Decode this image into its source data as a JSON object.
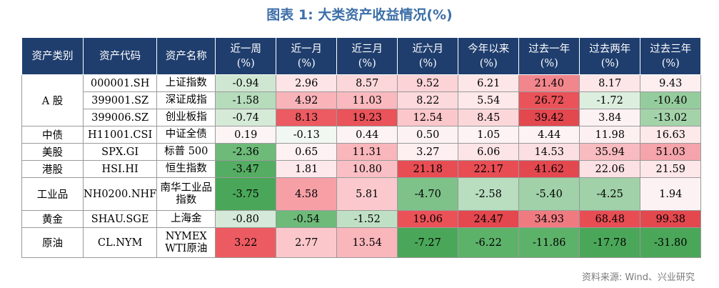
{
  "title": "图表 1:  大类资产收益情况(%)",
  "source": "资料来源: Wind、兴业研究",
  "headers": [
    {
      "line1": "资产类别",
      "line2": ""
    },
    {
      "line1": "资产代码",
      "line2": ""
    },
    {
      "line1": "资产名称",
      "line2": ""
    },
    {
      "line1": "近一周",
      "line2": "(%)"
    },
    {
      "line1": "近一月",
      "line2": "(%)"
    },
    {
      "line1": "近三月",
      "line2": "(%)"
    },
    {
      "line1": "近六月",
      "line2": "(%)"
    },
    {
      "line1": "今年以来",
      "line2": "(%)"
    },
    {
      "line1": "过去一年",
      "line2": "(%)"
    },
    {
      "line1": "过去两年",
      "line2": "(%)"
    },
    {
      "line1": "过去三年",
      "line2": "(%)"
    }
  ],
  "groups": [
    {
      "category": "A 股",
      "rows": [
        {
          "code": "000001.SH",
          "name": "上证指数",
          "values": [
            "-0.94",
            "2.96",
            "8.57",
            "9.52",
            "6.21",
            "21.40",
            "8.17",
            "9.43"
          ],
          "colors": [
            "#cfe7d2",
            "#fde4e6",
            "#fcd7da",
            "#fcd3d6",
            "#fde6e8",
            "#f2868d",
            "#fde6e8",
            "#fdeff0"
          ]
        },
        {
          "code": "399001.SZ",
          "name": "深证成指",
          "values": [
            "-1.58",
            "4.92",
            "11.03",
            "8.22",
            "5.54",
            "26.72",
            "-1.72",
            "-10.40"
          ],
          "colors": [
            "#b6dcbb",
            "#f8b4b9",
            "#fab9be",
            "#fcd9dc",
            "#fde8ea",
            "#e95359",
            "#dcefde",
            "#95cc9d"
          ]
        },
        {
          "code": "399006.SZ",
          "name": "创业板指",
          "values": [
            "-0.74",
            "8.13",
            "19.23",
            "12.54",
            "8.45",
            "39.42",
            "3.84",
            "-13.02"
          ],
          "colors": [
            "#d6ead8",
            "#ec5b61",
            "#e95359",
            "#fbc7cb",
            "#fcd7da",
            "#e3484f",
            "#fdf2f3",
            "#a4d3aa"
          ]
        }
      ]
    },
    {
      "category": "中债",
      "rows": [
        {
          "code": "H11001.CSI",
          "name": "中证全债",
          "values": [
            "0.19",
            "-0.13",
            "0.44",
            "0.50",
            "1.05",
            "4.44",
            "11.98",
            "16.63"
          ],
          "colors": [
            "#fdf4f5",
            "#f1f8f2",
            "#fdf3f4",
            "#fdf2f3",
            "#fdf3f4",
            "#fdf3f4",
            "#fdf0f1",
            "#fde9ea"
          ]
        }
      ]
    },
    {
      "category": "美股",
      "rows": [
        {
          "code": "SPX.GI",
          "name": "标普 500",
          "values": [
            "-2.36",
            "0.65",
            "11.31",
            "3.27",
            "6.06",
            "14.53",
            "35.94",
            "51.03"
          ],
          "colors": [
            "#6dba79",
            "#fdf1f2",
            "#f9b6bb",
            "#fdeff0",
            "#fde4e6",
            "#fcdfe2",
            "#f8bbc0",
            "#f4a4aa"
          ]
        }
      ]
    },
    {
      "category": "港股",
      "rows": [
        {
          "code": "HSI.HI",
          "name": "恒生指数",
          "values": [
            "-3.47",
            "1.81",
            "10.80",
            "21.18",
            "22.17",
            "41.62",
            "22.06",
            "21.59"
          ],
          "colors": [
            "#54ad62",
            "#fde9eb",
            "#fabfc4",
            "#e84d54",
            "#e84d54",
            "#e3484f",
            "#fce1e4",
            "#fde7e9"
          ]
        }
      ]
    },
    {
      "category": "工业品",
      "rows": [
        {
          "code": "NH0200.NHF",
          "name": "南华工业品指数",
          "values": [
            "-3.75",
            "4.58",
            "5.81",
            "-4.70",
            "-2.58",
            "-5.40",
            "-4.25",
            "1.94"
          ],
          "colors": [
            "#4aa759",
            "#f6a0a6",
            "#fbc9cd",
            "#7ec289",
            "#b9ddbf",
            "#a0d1a8",
            "#a0d1a8",
            "#fdf2f3"
          ]
        }
      ]
    },
    {
      "category": "黄金",
      "rows": [
        {
          "code": "SHAU.SGE",
          "name": "上海金",
          "values": [
            "-0.80",
            "-0.54",
            "-1.52",
            "19.06",
            "24.47",
            "34.93",
            "68.48",
            "99.38"
          ],
          "colors": [
            "#d4e9d7",
            "#6dba79",
            "#bfe0c4",
            "#ea5258",
            "#e4474e",
            "#ef7b81",
            "#e84d54",
            "#e3484f"
          ]
        }
      ]
    },
    {
      "category": "原油",
      "rows": [
        {
          "code": "CL.NYM",
          "name": "NYMEX WTI原油",
          "values": [
            "3.22",
            "2.77",
            "13.54",
            "-7.27",
            "-6.22",
            "-11.86",
            "-17.78",
            "-31.80"
          ],
          "colors": [
            "#ec5b61",
            "#fbc7cb",
            "#f9b6bb",
            "#4aa759",
            "#5db26a",
            "#5db26a",
            "#4aa759",
            "#4aa759"
          ]
        }
      ]
    }
  ]
}
